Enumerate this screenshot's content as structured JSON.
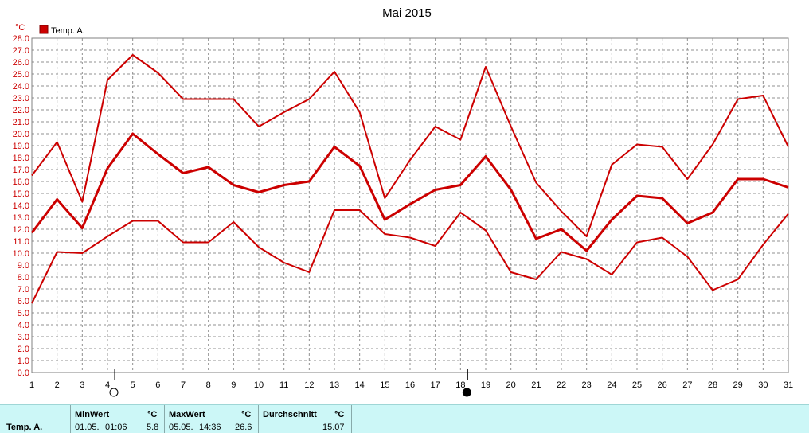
{
  "chart_data": {
    "type": "line",
    "title": "Mai 2015",
    "ylabel": "°C",
    "legend": "Temp. A.",
    "legend_position": "top-left",
    "categories": [
      "1",
      "2",
      "3",
      "4",
      "5",
      "6",
      "7",
      "8",
      "9",
      "10",
      "11",
      "12",
      "13",
      "14",
      "15",
      "16",
      "17",
      "18",
      "19",
      "20",
      "21",
      "22",
      "23",
      "24",
      "25",
      "26",
      "27",
      "28",
      "29",
      "30",
      "31"
    ],
    "ylim": [
      0,
      28
    ],
    "ystep": 1,
    "grid": true,
    "color": "#cc0000",
    "series": [
      {
        "role": "max",
        "values": [
          16.5,
          19.3,
          14.3,
          24.5,
          26.6,
          25.1,
          22.9,
          22.9,
          22.9,
          20.6,
          21.8,
          22.9,
          25.2,
          21.8,
          14.6,
          17.8,
          20.6,
          19.5,
          25.6,
          20.6,
          15.9,
          13.5,
          11.4,
          17.4,
          19.1,
          18.9,
          16.2,
          19.1,
          22.9,
          23.2,
          18.9
        ]
      },
      {
        "role": "avg",
        "values": [
          11.7,
          14.5,
          12.1,
          17.1,
          20.0,
          18.3,
          16.7,
          17.2,
          15.7,
          15.1,
          15.7,
          16.0,
          18.9,
          17.3,
          12.8,
          14.1,
          15.3,
          15.7,
          18.1,
          15.3,
          11.2,
          12.0,
          10.2,
          12.8,
          14.8,
          14.6,
          12.5,
          13.4,
          16.2,
          16.2,
          15.5
        ]
      },
      {
        "role": "min",
        "values": [
          5.8,
          10.1,
          10.0,
          11.4,
          12.7,
          12.7,
          10.9,
          10.9,
          12.6,
          10.5,
          9.2,
          8.4,
          13.6,
          13.6,
          11.6,
          11.3,
          10.6,
          13.4,
          11.9,
          8.4,
          7.8,
          10.1,
          9.5,
          8.2,
          10.9,
          11.3,
          9.7,
          6.9,
          7.8,
          10.7,
          13.3
        ]
      }
    ],
    "moon_markers": [
      {
        "day": 4,
        "phase": "full",
        "symbol": "○"
      },
      {
        "day": 18,
        "phase": "new",
        "symbol": "●"
      }
    ]
  },
  "summary": {
    "row_label": "Temp. A.",
    "min": {
      "header": "MinWert",
      "unit": "°C",
      "date": "01.05.",
      "time": "01:06",
      "value": "5.8"
    },
    "max": {
      "header": "MaxWert",
      "unit": "°C",
      "date": "05.05.",
      "time": "14:36",
      "value": "26.6"
    },
    "avg": {
      "header": "Durchschnitt",
      "unit": "°C",
      "value": "15.07"
    }
  }
}
